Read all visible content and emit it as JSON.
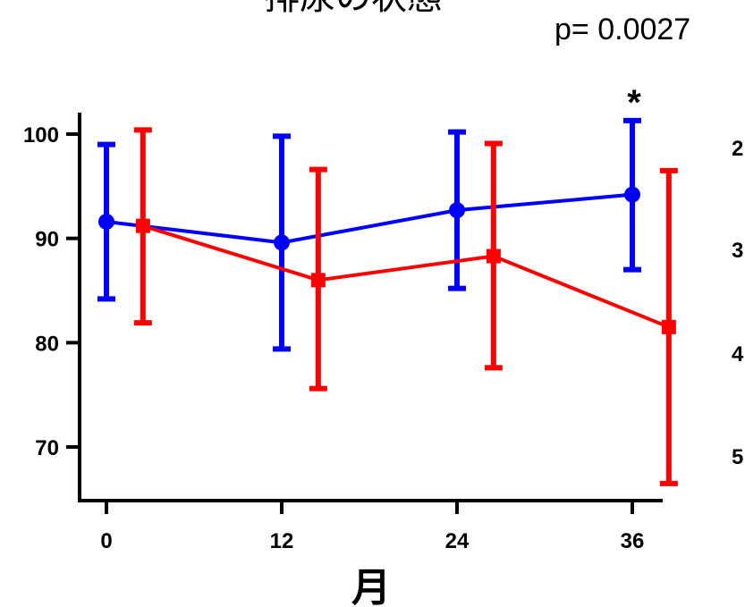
{
  "chart_data": {
    "type": "line",
    "title": "排尿の状態",
    "annotation": "p= 0.0027",
    "significance_marker": "*",
    "significance_at_x": 36,
    "xlabel": "月",
    "ylabel": "",
    "x": [
      0,
      12,
      24,
      36
    ],
    "x_ticks": [
      "0",
      "12",
      "24",
      "36"
    ],
    "y_ticks": [
      "70",
      "80",
      "90",
      "100"
    ],
    "ylim": [
      65,
      102
    ],
    "right_axis_ticks": [
      "2",
      "3",
      "4",
      "5"
    ],
    "series": [
      {
        "color": "#0000ff",
        "marker": "circle",
        "x_offset": 0,
        "values": [
          91.6,
          89.6,
          92.7,
          94.2
        ],
        "err_low": [
          84.2,
          79.4,
          85.2,
          87.0
        ],
        "err_high": [
          99.0,
          99.8,
          100.2,
          101.3
        ]
      },
      {
        "color": "#ff0000",
        "marker": "square",
        "x_offset": 2.5,
        "values": [
          91.2,
          86.0,
          88.3,
          81.5
        ],
        "err_low": [
          81.9,
          75.6,
          77.6,
          66.5
        ],
        "err_high": [
          100.4,
          96.6,
          99.1,
          96.5
        ]
      }
    ]
  }
}
